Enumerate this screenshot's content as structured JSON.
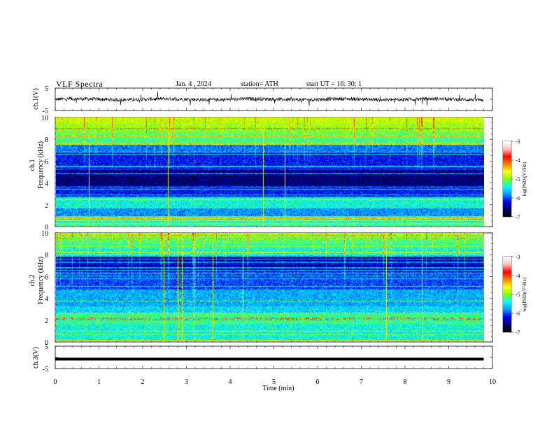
{
  "header": {
    "title": "VLF  Spectra",
    "date": "Jan.  4  , 2024",
    "station": "station= ATH",
    "start": "start  UT  =    16: 30: 1"
  },
  "chart_data": [
    {
      "type": "line",
      "panel": "ch1-waveform",
      "ylabel": "ch.1(V)",
      "yticks": [
        "5",
        "-5"
      ],
      "ylim": [
        -5,
        5
      ],
      "xlim": [
        0,
        10
      ],
      "series": [
        {
          "description": "noisy waveform near 0 V with spikes",
          "x_range": [
            0,
            9.8
          ],
          "level": 0
        }
      ]
    },
    {
      "type": "heatmap",
      "panel": "ch1-spectrogram",
      "ylabel": "ch.1\nFrequency  (kHz)",
      "ylabel_lines": [
        "ch.1",
        "Frequency  (kHz)"
      ],
      "yticks": [
        "0",
        "2",
        "4",
        "6",
        "8",
        "10"
      ],
      "ylim": [
        0,
        10
      ],
      "xlim": [
        0,
        10
      ],
      "data_x_range": [
        0,
        9.8
      ],
      "colorbar": {
        "label": "log(PSD)(V²/Hz)",
        "ticks": [
          "-3",
          "-4",
          "-5",
          "-6",
          "-7"
        ],
        "range": [
          -7,
          -3
        ]
      }
    },
    {
      "type": "heatmap",
      "panel": "ch2-spectrogram",
      "ylabel": "ch.2\nFrequency  (kHz)",
      "ylabel_lines": [
        "ch.2",
        "Frequency  (kHz)"
      ],
      "yticks": [
        "0",
        "2",
        "4",
        "6",
        "8",
        "10"
      ],
      "ylim": [
        0,
        10
      ],
      "xlim": [
        0,
        10
      ],
      "data_x_range": [
        0,
        9.8
      ],
      "colorbar": {
        "label": "log(PSD)(V²/Hz)",
        "ticks": [
          "-3",
          "-4",
          "-5",
          "-6",
          "-7"
        ],
        "range": [
          -7,
          -3
        ]
      }
    },
    {
      "type": "line",
      "panel": "ch3-waveform",
      "ylabel": "ch.3(V)",
      "yticks": [
        "5",
        "-5"
      ],
      "ylim": [
        -5,
        5
      ],
      "xlim": [
        0,
        10
      ],
      "series": [
        {
          "description": "flat thick line",
          "x_range": [
            0,
            9.8
          ],
          "level": -0.8
        }
      ]
    }
  ],
  "xaxis": {
    "label": "Time  (min)",
    "ticks": [
      "0",
      "1",
      "2",
      "3",
      "4",
      "5",
      "6",
      "7",
      "8",
      "9",
      "10"
    ]
  },
  "colors": {
    "spectrogram_scale": [
      "#000000",
      "#00006e",
      "#0000ff",
      "#00a0ff",
      "#00ffff",
      "#80ff00",
      "#ffff00",
      "#ff8000",
      "#ff0000",
      "#ffc0c0",
      "#ffffff"
    ]
  }
}
